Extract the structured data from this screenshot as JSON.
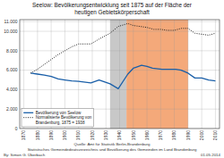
{
  "chart_data": {
    "type": "line",
    "title": "Seelow: Bevölkerungsentwicklung seit 1875 auf der Fläche der",
    "subtitle": "heutigen Gebietskörperschaft",
    "annotations": [
      "Quelle: Amt für Statistik Berlin-Brandenburg",
      "Statistisches Gemeindedeatsverzeichnis und Bevölkerung des Gemeinden im Land Brandenburg",
      "By: Simon G. Überbach",
      "01.05.2014"
    ],
    "xlim": [
      1867,
      2013
    ],
    "xticks": [
      1870,
      1880,
      1890,
      1900,
      1910,
      1920,
      1930,
      1940,
      1950,
      1960,
      1970,
      1980,
      1990,
      2000,
      2010
    ],
    "ylim": [
      0,
      11200
    ],
    "yticks": [
      0,
      {
        "value": 2000,
        "label": "2.000"
      },
      {
        "value": 4000,
        "label": "4.000"
      },
      {
        "value": 6000,
        "label": "6.000"
      },
      {
        "value": 8000,
        "label": "8.000"
      },
      {
        "value": 10000,
        "label": "10.000"
      },
      {
        "value": 11000,
        "label": "11.000"
      }
    ],
    "grid": true,
    "legend": "lower left",
    "bands": [
      {
        "start": 1933,
        "end": 1945,
        "color": "#c8c8c8"
      },
      {
        "start": 1945,
        "end": 1990,
        "color": "#f4a97a"
      }
    ],
    "series": [
      {
        "name": "Bevölkerung von Seelow",
        "color": "#1a5fa8",
        "line_style": "solid",
        "x": [
          1875,
          1880,
          1885,
          1890,
          1895,
          1900,
          1905,
          1910,
          1919,
          1925,
          1933,
          1939,
          1946,
          1950,
          1952,
          1956,
          1960,
          1964,
          1971,
          1981,
          1985,
          1990,
          1995,
          2000,
          2005,
          2010
        ],
        "values": [
          5700,
          5600,
          5500,
          5350,
          5100,
          5000,
          4900,
          4850,
          4700,
          5000,
          4600,
          4100,
          5600,
          6200,
          6300,
          6500,
          6400,
          6200,
          6100,
          6100,
          6000,
          5700,
          5200,
          5200,
          5000,
          4900
        ]
      },
      {
        "name": "Normalisierte Bevölkerung von\nBrandenburg, 1875 = 1938",
        "color": "#222222",
        "line_style": "dotted",
        "x": [
          1875,
          1880,
          1885,
          1890,
          1895,
          1900,
          1905,
          1910,
          1919,
          1925,
          1933,
          1939,
          1946,
          1950,
          1960,
          1965,
          1970,
          1975,
          1980,
          1985,
          1990,
          1995,
          2000,
          2005,
          2010
        ],
        "values": [
          5700,
          6100,
          6600,
          7100,
          7600,
          8000,
          8400,
          8700,
          8700,
          9200,
          9800,
          10500,
          10800,
          10600,
          10400,
          10200,
          10200,
          10100,
          10100,
          10300,
          10300,
          9800,
          9700,
          9600,
          9800
        ]
      }
    ]
  }
}
